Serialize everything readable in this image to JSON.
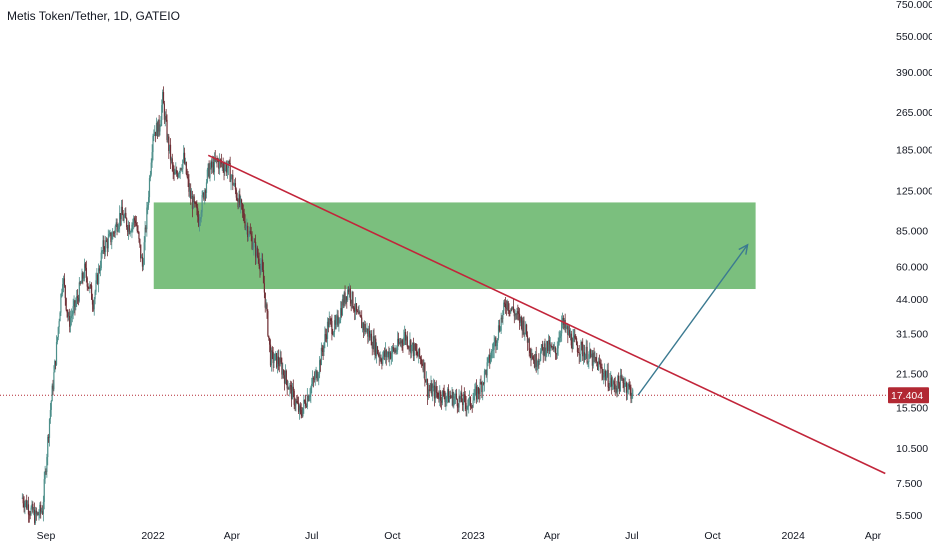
{
  "header": {
    "title": "Metis Token/Tether, 1D, GATEIO"
  },
  "chart_data": {
    "type": "candlestick",
    "title": "Metis Token/Tether, 1D, GATEIO",
    "y_scale": "log",
    "y_tick_labels": [
      "750.000",
      "550.000",
      "390.000",
      "265.000",
      "185.000",
      "125.000",
      "85.000",
      "60.000",
      "44.000",
      "31.500",
      "21.500",
      "15.500",
      "10.500",
      "7.500",
      "5.500"
    ],
    "x_tick_labels": [
      "Sep",
      "2022",
      "Apr",
      "Jul",
      "Oct",
      "2023",
      "Apr",
      "Jul",
      "Oct",
      "2024",
      "Apr"
    ],
    "x_tick_dates": [
      "2021-09-01",
      "2022-01-01",
      "2022-04-01",
      "2022-07-01",
      "2022-10-01",
      "2023-01-01",
      "2023-04-01",
      "2023-07-01",
      "2023-10-01",
      "2024-01-01",
      "2024-04-01"
    ],
    "current_price": {
      "value": 17.404,
      "label": "17.404",
      "color": "#b22833"
    },
    "price_path": [
      {
        "date": "2021-08-05",
        "close": 6.5
      },
      {
        "date": "2021-08-20",
        "close": 5.4
      },
      {
        "date": "2021-08-28",
        "close": 5.8
      },
      {
        "date": "2021-09-05",
        "close": 14
      },
      {
        "date": "2021-09-12",
        "close": 25
      },
      {
        "date": "2021-09-20",
        "close": 55
      },
      {
        "date": "2021-09-27",
        "close": 35
      },
      {
        "date": "2021-10-05",
        "close": 42
      },
      {
        "date": "2021-10-15",
        "close": 58
      },
      {
        "date": "2021-10-25",
        "close": 43
      },
      {
        "date": "2021-11-05",
        "close": 72
      },
      {
        "date": "2021-11-15",
        "close": 80
      },
      {
        "date": "2021-11-25",
        "close": 100
      },
      {
        "date": "2021-12-05",
        "close": 88
      },
      {
        "date": "2021-12-12",
        "close": 95
      },
      {
        "date": "2021-12-20",
        "close": 60
      },
      {
        "date": "2021-12-26",
        "close": 110
      },
      {
        "date": "2022-01-01",
        "close": 220
      },
      {
        "date": "2022-01-08",
        "close": 230
      },
      {
        "date": "2022-01-12",
        "close": 300
      },
      {
        "date": "2022-01-18",
        "close": 200
      },
      {
        "date": "2022-01-25",
        "close": 140
      },
      {
        "date": "2022-02-05",
        "close": 170
      },
      {
        "date": "2022-02-12",
        "close": 120
      },
      {
        "date": "2022-02-22",
        "close": 95
      },
      {
        "date": "2022-03-05",
        "close": 150
      },
      {
        "date": "2022-03-15",
        "close": 165
      },
      {
        "date": "2022-03-28",
        "close": 155
      },
      {
        "date": "2022-04-05",
        "close": 125
      },
      {
        "date": "2022-04-15",
        "close": 95
      },
      {
        "date": "2022-04-28",
        "close": 70
      },
      {
        "date": "2022-05-05",
        "close": 60
      },
      {
        "date": "2022-05-10",
        "close": 40
      },
      {
        "date": "2022-05-15",
        "close": 25
      },
      {
        "date": "2022-05-25",
        "close": 24
      },
      {
        "date": "2022-06-05",
        "close": 19
      },
      {
        "date": "2022-06-12",
        "close": 16.5
      },
      {
        "date": "2022-06-18",
        "close": 14.5
      },
      {
        "date": "2022-06-28",
        "close": 18
      },
      {
        "date": "2022-07-08",
        "close": 22
      },
      {
        "date": "2022-07-20",
        "close": 35
      },
      {
        "date": "2022-07-28",
        "close": 33
      },
      {
        "date": "2022-08-05",
        "close": 42
      },
      {
        "date": "2022-08-12",
        "close": 49
      },
      {
        "date": "2022-08-22",
        "close": 37
      },
      {
        "date": "2022-09-05",
        "close": 31
      },
      {
        "date": "2022-09-18",
        "close": 25
      },
      {
        "date": "2022-10-05",
        "close": 27
      },
      {
        "date": "2022-10-15",
        "close": 31
      },
      {
        "date": "2022-10-28",
        "close": 26
      },
      {
        "date": "2022-11-05",
        "close": 24
      },
      {
        "date": "2022-11-10",
        "close": 18.5
      },
      {
        "date": "2022-11-25",
        "close": 17.5
      },
      {
        "date": "2022-12-10",
        "close": 17
      },
      {
        "date": "2022-12-28",
        "close": 16
      },
      {
        "date": "2023-01-10",
        "close": 19
      },
      {
        "date": "2023-01-22",
        "close": 26
      },
      {
        "date": "2023-02-01",
        "close": 35
      },
      {
        "date": "2023-02-08",
        "close": 43
      },
      {
        "date": "2023-02-18",
        "close": 38
      },
      {
        "date": "2023-02-28",
        "close": 34
      },
      {
        "date": "2023-03-12",
        "close": 24
      },
      {
        "date": "2023-03-25",
        "close": 28
      },
      {
        "date": "2023-04-05",
        "close": 26
      },
      {
        "date": "2023-04-12",
        "close": 35
      },
      {
        "date": "2023-04-25",
        "close": 29
      },
      {
        "date": "2023-05-10",
        "close": 26
      },
      {
        "date": "2023-05-25",
        "close": 23
      },
      {
        "date": "2023-06-10",
        "close": 19
      },
      {
        "date": "2023-06-22",
        "close": 20
      },
      {
        "date": "2023-07-03",
        "close": 17.404
      }
    ],
    "annotations": [
      {
        "kind": "trendline",
        "color": "#c2253a",
        "from": {
          "date": "2022-03-05",
          "value": 175
        },
        "to": {
          "date": "2024-04-15",
          "value": 8.2
        }
      },
      {
        "kind": "rectangle",
        "color": "#7bbf7e",
        "from": {
          "date": "2022-01-01",
          "value": 48
        },
        "to": {
          "date": "2023-11-20",
          "value": 112
        }
      },
      {
        "kind": "arrow",
        "color": "#3b7a91",
        "from": {
          "date": "2023-07-08",
          "value": 17.4
        },
        "to": {
          "date": "2023-11-10",
          "value": 74
        }
      }
    ]
  },
  "colors": {
    "up": "#4d8f8a",
    "down": "#6e2d33",
    "zone": "#7bbf7e",
    "trend": "#c2253a",
    "arrow": "#3b7a91",
    "price": "#b22833"
  }
}
